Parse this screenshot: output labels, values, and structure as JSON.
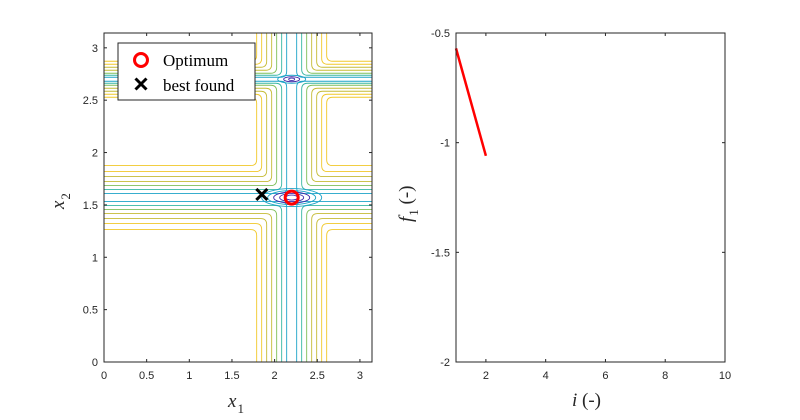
{
  "chart_data": [
    {
      "type": "contour",
      "xlabel": {
        "main": "x",
        "sub": "1"
      },
      "ylabel": {
        "main": "x",
        "sub": "2"
      },
      "xlim": [
        0,
        3.14159
      ],
      "ylim": [
        0,
        3.14159
      ],
      "xticks": [
        0,
        0.5,
        1,
        1.5,
        2,
        2.5,
        3
      ],
      "xtick_labels": [
        "0",
        "0.5",
        "1",
        "1.5",
        "2",
        "2.5",
        "3"
      ],
      "yticks": [
        0,
        0.5,
        1,
        1.5,
        2,
        2.5,
        3
      ],
      "ytick_labels": [
        "0",
        "0.5",
        "1",
        "1.5",
        "2",
        "2.5",
        "3"
      ],
      "surface_features": [
        {
          "x": 2.2,
          "y": 1.57,
          "kind": "global minimum basin"
        },
        {
          "x": 2.2,
          "y": 2.7,
          "kind": "secondary minimum basin"
        }
      ],
      "band_centers": {
        "x": 2.2,
        "y": [
          1.57,
          2.7
        ]
      },
      "contour_colors": [
        "#3d26a8",
        "#1da3c7",
        "#36b7a2",
        "#7fbf5a",
        "#c5bb35",
        "#f0c828"
      ],
      "markers": [
        {
          "name": "Optimum",
          "x": 2.2,
          "y": 1.57,
          "symbol": "circle",
          "color": "#ff0000"
        },
        {
          "name": "best found",
          "x": 1.85,
          "y": 1.6,
          "symbol": "x",
          "color": "#000000"
        }
      ],
      "legend": {
        "placement": "top-left",
        "entries": [
          {
            "label": "Optimum",
            "symbol": "circle",
            "color": "#ff0000"
          },
          {
            "label": "best found",
            "symbol": "x",
            "color": "#000000"
          }
        ]
      },
      "grid": false
    },
    {
      "type": "line",
      "xlabel": {
        "main": "i",
        "unit": " (-)"
      },
      "ylabel": {
        "main": "f",
        "sub": "1",
        "unit": " (-)"
      },
      "xlim": [
        1,
        10
      ],
      "ylim": [
        -2,
        -0.5
      ],
      "xticks": [
        2,
        4,
        6,
        8,
        10
      ],
      "xtick_labels": [
        "2",
        "4",
        "6",
        "8",
        "10"
      ],
      "yticks": [
        -0.5,
        -1,
        -1.5,
        -2
      ],
      "ytick_labels": [
        "-0.5",
        "-1",
        "-1.5",
        "-2"
      ],
      "series": [
        {
          "x": [
            1,
            2
          ],
          "y": [
            -0.57,
            -1.06
          ],
          "color": "#ff0000"
        }
      ],
      "grid": false
    }
  ]
}
